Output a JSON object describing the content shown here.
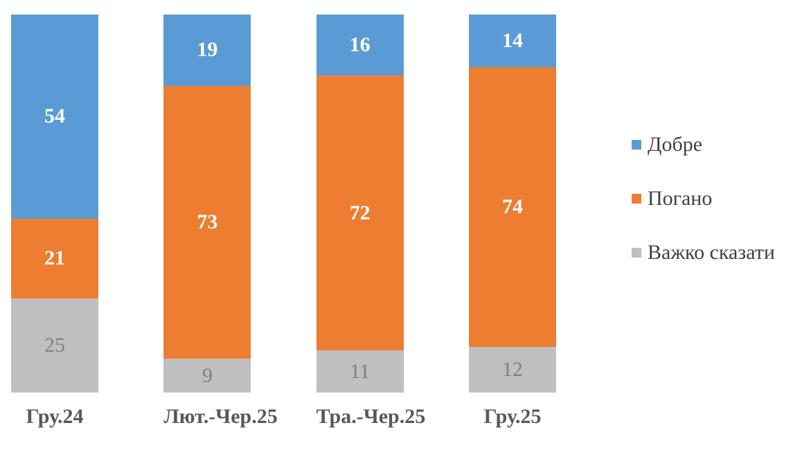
{
  "chart_data": {
    "type": "bar",
    "subtype": "stacked-100-percent-column",
    "title": "",
    "xlabel": "",
    "ylabel": "",
    "grid": false,
    "legend_position": "right",
    "background_color": "#FFFFFF",
    "axis_label_color": "#595959",
    "legend_text_color": "#404040",
    "categories": [
      "Гру.24",
      "Лют.-Чер.25",
      "Тра.-Чер.25",
      "Гру.25"
    ],
    "series": [
      {
        "name": "Добре",
        "color": "#5B9BD5",
        "label_color": "#FFFFFF",
        "label_bold": true,
        "values": [
          54,
          19,
          16,
          14
        ]
      },
      {
        "name": "Погано",
        "color": "#ED7D31",
        "label_color": "#FFFFFF",
        "label_bold": true,
        "values": [
          21,
          73,
          72,
          74
        ]
      },
      {
        "name": "Важко сказати",
        "color": "#BFBFBF",
        "label_color": "#808080",
        "label_bold": false,
        "values": [
          25,
          9,
          11,
          12
        ]
      }
    ]
  }
}
